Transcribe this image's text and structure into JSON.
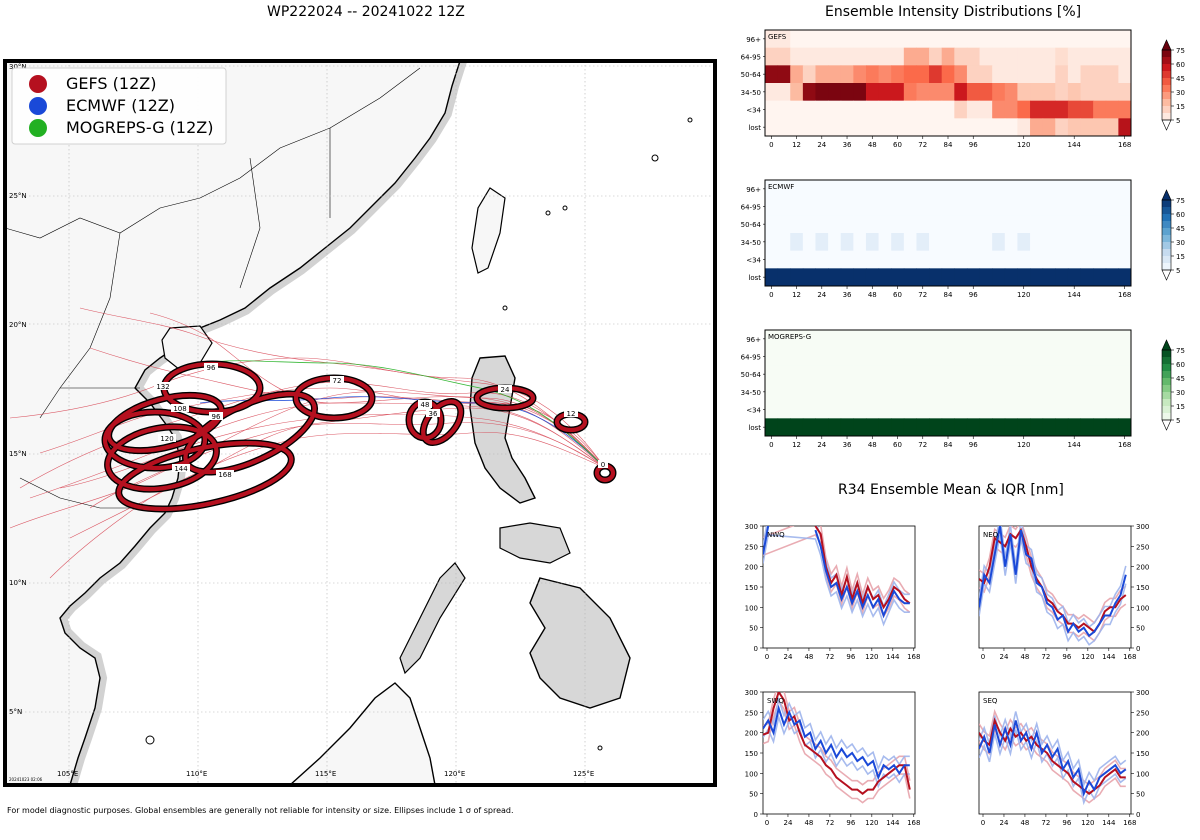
{
  "map": {
    "title": "WP222024 -- 20241022 12Z",
    "lat_labels": [
      "30°N",
      "25°N",
      "20°N",
      "15°N",
      "10°N",
      "5°N"
    ],
    "lon_labels": [
      "105°E",
      "110°E",
      "115°E",
      "120°E",
      "125°E"
    ],
    "legend": [
      {
        "label": "GEFS (12Z)",
        "color": "#b5101f"
      },
      {
        "label": "ECMWF (12Z)",
        "color": "#1a49d8"
      },
      {
        "label": "MOGREPS-G (12Z)",
        "color": "#22b022"
      }
    ],
    "stamp": "20241023 02:06",
    "ellipse_labels": [
      "0",
      "12",
      "24",
      "36",
      "48",
      "72",
      "96",
      "96",
      "120",
      "132",
      "144",
      "168",
      "108"
    ],
    "footer": "For model diagnostic purposes. Global ensembles are generally not reliable for intensity or size. Ellipses include 1 σ of spread."
  },
  "intensity": {
    "title": "Ensemble Intensity Distributions [%]",
    "row_labels": [
      "96+",
      "64-95",
      "50-64",
      "34-50",
      "<34",
      "lost"
    ],
    "x_ticks": [
      "0",
      "12",
      "24",
      "36",
      "48",
      "60",
      "72",
      "84",
      "96",
      "120",
      "144",
      "168"
    ],
    "colorbar_ticks": [
      "75",
      "60",
      "45",
      "30",
      "15",
      "5"
    ],
    "panels": [
      {
        "name": "GEFS",
        "cmap": "Reds"
      },
      {
        "name": "ECMWF",
        "cmap": "Blues"
      },
      {
        "name": "MOGREPS-G",
        "cmap": "Greens"
      }
    ]
  },
  "r34": {
    "title": "R34 Ensemble Mean & IQR [nm]",
    "y_ticks": [
      "300",
      "250",
      "200",
      "150",
      "100",
      "50",
      "0"
    ],
    "x_ticks": [
      "0",
      "24",
      "48",
      "72",
      "96",
      "120",
      "144",
      "168"
    ],
    "panels": [
      {
        "name": "NWQ"
      },
      {
        "name": "NEQ"
      },
      {
        "name": "SWQ"
      },
      {
        "name": "SEQ"
      }
    ]
  },
  "chart_data": [
    {
      "type": "heatmap",
      "title": "GEFS",
      "x": [
        0,
        6,
        12,
        18,
        24,
        30,
        36,
        42,
        48,
        54,
        60,
        66,
        72,
        78,
        84,
        90,
        96,
        102,
        108,
        114,
        120,
        126,
        132,
        138,
        144,
        150,
        156,
        162,
        168
      ],
      "rows": [
        "96+",
        "64-95",
        "50-64",
        "34-50",
        "<34",
        "lost"
      ],
      "values": [
        [
          5,
          5,
          0,
          0,
          0,
          0,
          0,
          0,
          0,
          0,
          0,
          0,
          0,
          0,
          0,
          0,
          0,
          0,
          0,
          0,
          0,
          0,
          0,
          0,
          0,
          0,
          0,
          0,
          0
        ],
        [
          15,
          15,
          5,
          5,
          5,
          5,
          5,
          5,
          5,
          5,
          5,
          30,
          30,
          15,
          30,
          15,
          15,
          5,
          5,
          5,
          5,
          5,
          5,
          10,
          5,
          5,
          5,
          5,
          5
        ],
        [
          90,
          90,
          30,
          15,
          30,
          30,
          30,
          40,
          45,
          40,
          45,
          50,
          50,
          65,
          50,
          40,
          15,
          15,
          5,
          5,
          5,
          5,
          5,
          15,
          5,
          15,
          15,
          15,
          5
        ],
        [
          5,
          5,
          25,
          90,
          95,
          95,
          95,
          95,
          75,
          75,
          75,
          45,
          40,
          40,
          40,
          75,
          55,
          55,
          45,
          40,
          20,
          20,
          20,
          15,
          20,
          15,
          15,
          15,
          15
        ],
        [
          0,
          0,
          0,
          0,
          0,
          0,
          0,
          0,
          0,
          0,
          0,
          0,
          0,
          0,
          0,
          15,
          5,
          5,
          40,
          40,
          50,
          70,
          70,
          70,
          60,
          60,
          45,
          45,
          45
        ],
        [
          0,
          0,
          0,
          0,
          0,
          0,
          0,
          0,
          0,
          0,
          0,
          0,
          0,
          0,
          0,
          0,
          0,
          0,
          0,
          0,
          5,
          30,
          30,
          15,
          20,
          20,
          20,
          20,
          80
        ]
      ]
    },
    {
      "type": "heatmap",
      "title": "ECMWF",
      "x": [
        0,
        6,
        12,
        18,
        24,
        30,
        36,
        42,
        48,
        54,
        60,
        66,
        72,
        78,
        84,
        90,
        96,
        102,
        108,
        114,
        120,
        126,
        132,
        138,
        144,
        150,
        156,
        162,
        168
      ],
      "rows": [
        "96+",
        "64-95",
        "50-64",
        "34-50",
        "<34",
        "lost"
      ],
      "values": [
        [
          0,
          0,
          0,
          0,
          0,
          0,
          0,
          0,
          0,
          0,
          0,
          0,
          0,
          0,
          0,
          0,
          0,
          0,
          0,
          0,
          0,
          0,
          0,
          0,
          0,
          0,
          0,
          0,
          0
        ],
        [
          0,
          0,
          0,
          0,
          0,
          0,
          0,
          0,
          0,
          0,
          0,
          0,
          0,
          0,
          0,
          0,
          0,
          0,
          0,
          0,
          0,
          0,
          0,
          0,
          0,
          0,
          0,
          0,
          0
        ],
        [
          0,
          0,
          0,
          0,
          0,
          0,
          0,
          0,
          0,
          0,
          0,
          0,
          0,
          0,
          0,
          0,
          0,
          0,
          0,
          0,
          0,
          0,
          0,
          0,
          0,
          0,
          0,
          0,
          0
        ],
        [
          0,
          0,
          10,
          0,
          10,
          0,
          10,
          0,
          10,
          0,
          10,
          0,
          10,
          0,
          0,
          0,
          0,
          0,
          10,
          0,
          10,
          0,
          0,
          0,
          0,
          0,
          0,
          0,
          0
        ],
        [
          0,
          0,
          0,
          0,
          0,
          0,
          0,
          0,
          0,
          0,
          0,
          0,
          0,
          0,
          0,
          0,
          0,
          0,
          0,
          0,
          0,
          0,
          0,
          0,
          0,
          0,
          0,
          0,
          0
        ],
        [
          100,
          100,
          100,
          100,
          100,
          100,
          100,
          100,
          100,
          100,
          100,
          100,
          100,
          100,
          100,
          100,
          100,
          100,
          100,
          100,
          100,
          100,
          100,
          100,
          100,
          100,
          100,
          100,
          100
        ]
      ]
    },
    {
      "type": "heatmap",
      "title": "MOGREPS-G",
      "x": [
        0,
        6,
        12,
        18,
        24,
        30,
        36,
        42,
        48,
        54,
        60,
        66,
        72,
        78,
        84,
        90,
        96,
        102,
        108,
        114,
        120,
        126,
        132,
        138,
        144,
        150,
        156,
        162,
        168
      ],
      "rows": [
        "96+",
        "64-95",
        "50-64",
        "34-50",
        "<34",
        "lost"
      ],
      "values": [
        [
          0,
          0,
          0,
          0,
          0,
          0,
          0,
          0,
          0,
          0,
          0,
          0,
          0,
          0,
          0,
          0,
          0,
          0,
          0,
          0,
          0,
          0,
          0,
          0,
          0,
          0,
          0,
          0,
          0
        ],
        [
          0,
          0,
          0,
          0,
          0,
          0,
          0,
          0,
          0,
          0,
          0,
          0,
          0,
          0,
          0,
          0,
          0,
          0,
          0,
          0,
          0,
          0,
          0,
          0,
          0,
          0,
          0,
          0,
          0
        ],
        [
          0,
          0,
          0,
          0,
          0,
          0,
          0,
          0,
          0,
          0,
          0,
          0,
          0,
          0,
          0,
          0,
          0,
          0,
          0,
          0,
          0,
          0,
          0,
          0,
          0,
          0,
          0,
          0,
          0
        ],
        [
          0,
          0,
          0,
          0,
          0,
          0,
          0,
          0,
          0,
          0,
          0,
          0,
          0,
          0,
          0,
          0,
          0,
          0,
          0,
          0,
          0,
          0,
          0,
          0,
          0,
          0,
          0,
          0,
          0
        ],
        [
          0,
          0,
          0,
          0,
          0,
          0,
          0,
          0,
          0,
          0,
          0,
          0,
          0,
          0,
          0,
          0,
          0,
          0,
          0,
          0,
          0,
          0,
          0,
          0,
          0,
          0,
          0,
          0,
          0
        ],
        [
          100,
          100,
          100,
          100,
          100,
          100,
          100,
          100,
          100,
          100,
          100,
          100,
          100,
          100,
          100,
          100,
          100,
          100,
          100,
          100,
          100,
          100,
          100,
          100,
          100,
          100,
          100,
          100,
          100
        ]
      ]
    },
    {
      "type": "line",
      "title": "NWQ",
      "x": [
        0,
        6,
        12,
        18,
        24,
        30,
        36,
        42,
        48,
        54,
        60,
        66,
        72,
        78,
        84,
        90,
        96,
        102,
        108,
        114,
        120,
        126,
        132,
        138,
        144,
        150,
        156,
        162,
        168
      ],
      "ylim": [
        0,
        300
      ],
      "series": [
        {
          "values": [
            250,
            null,
            null,
            null,
            null,
            null,
            null,
            null,
            null,
            null,
            300,
            280,
            200,
            160,
            180,
            130,
            175,
            120,
            160,
            110,
            150,
            120,
            130,
            100,
            120,
            150,
            140,
            120,
            110
          ]
        },
        {
          "values": [
            230,
            300,
            null,
            null,
            null,
            null,
            null,
            null,
            null,
            null,
            290,
            250,
            190,
            150,
            160,
            120,
            150,
            110,
            140,
            100,
            130,
            100,
            120,
            80,
            110,
            140,
            120,
            110,
            110
          ]
        }
      ]
    },
    {
      "type": "line",
      "title": "NEQ",
      "x": [
        0,
        6,
        12,
        18,
        24,
        30,
        36,
        42,
        48,
        54,
        60,
        66,
        72,
        78,
        84,
        90,
        96,
        102,
        108,
        114,
        120,
        126,
        132,
        138,
        144,
        150,
        156,
        162,
        168
      ],
      "ylim": [
        0,
        300
      ],
      "series": [
        {
          "values": [
            170,
            160,
            200,
            270,
            260,
            250,
            280,
            270,
            290,
            250,
            200,
            170,
            150,
            120,
            110,
            90,
            80,
            60,
            60,
            50,
            60,
            50,
            40,
            60,
            90,
            100,
            100,
            120,
            130
          ]
        },
        {
          "values": [
            100,
            180,
            160,
            230,
            300,
            200,
            280,
            180,
            290,
            230,
            220,
            160,
            150,
            110,
            100,
            70,
            80,
            40,
            60,
            40,
            50,
            30,
            40,
            60,
            80,
            80,
            110,
            130,
            180
          ]
        }
      ]
    },
    {
      "type": "line",
      "title": "SWQ",
      "x": [
        0,
        6,
        12,
        18,
        24,
        30,
        36,
        42,
        48,
        54,
        60,
        66,
        72,
        78,
        84,
        90,
        96,
        102,
        108,
        114,
        120,
        126,
        132,
        138,
        144,
        150,
        156,
        162,
        168
      ],
      "ylim": [
        0,
        300
      ],
      "series": [
        {
          "values": [
            195,
            200,
            260,
            300,
            280,
            230,
            240,
            200,
            170,
            160,
            150,
            140,
            120,
            110,
            90,
            80,
            70,
            60,
            60,
            50,
            60,
            60,
            80,
            90,
            100,
            110,
            120,
            120,
            60
          ]
        },
        {
          "values": [
            210,
            230,
            200,
            260,
            220,
            250,
            220,
            230,
            190,
            200,
            160,
            180,
            150,
            170,
            140,
            160,
            140,
            150,
            130,
            140,
            120,
            130,
            90,
            120,
            110,
            120,
            100,
            120,
            120
          ]
        }
      ]
    },
    {
      "type": "line",
      "title": "SEQ",
      "x": [
        0,
        6,
        12,
        18,
        24,
        30,
        36,
        42,
        48,
        54,
        60,
        66,
        72,
        78,
        84,
        90,
        96,
        102,
        108,
        114,
        120,
        126,
        132,
        138,
        144,
        150,
        156,
        162,
        168
      ],
      "ylim": [
        0,
        300
      ],
      "series": [
        {
          "values": [
            200,
            180,
            170,
            230,
            200,
            180,
            210,
            190,
            200,
            180,
            190,
            170,
            160,
            150,
            130,
            120,
            110,
            100,
            80,
            70,
            60,
            50,
            60,
            70,
            90,
            100,
            110,
            90,
            90
          ]
        },
        {
          "values": [
            160,
            190,
            150,
            220,
            170,
            210,
            170,
            230,
            180,
            200,
            160,
            200,
            150,
            170,
            140,
            160,
            110,
            130,
            90,
            110,
            50,
            80,
            60,
            90,
            100,
            110,
            120,
            100,
            110
          ]
        }
      ]
    }
  ]
}
